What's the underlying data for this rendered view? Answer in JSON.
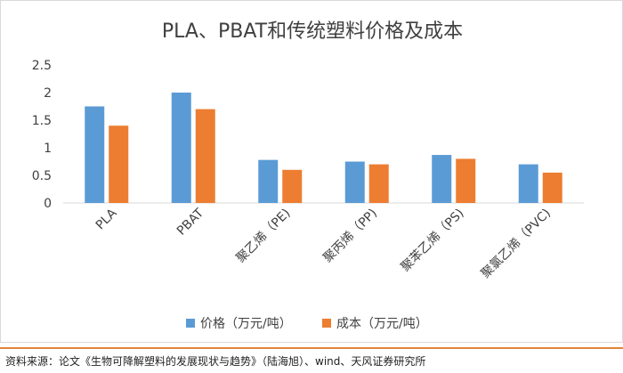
{
  "chart_data": {
    "type": "bar",
    "title": "PLA、PBAT和传统塑料价格及成本",
    "categories": [
      "PLA",
      "PBAT",
      "聚乙烯（PE)",
      "聚丙烯（PP)",
      "聚苯乙烯（PS)",
      "聚氯乙烯（PVC)"
    ],
    "series": [
      {
        "name": "价格（万元/吨）",
        "color": "#5b9bd5",
        "values": [
          1.75,
          2.0,
          0.78,
          0.75,
          0.87,
          0.7
        ]
      },
      {
        "name": "成本（万元/吨）",
        "color": "#ed7d31",
        "values": [
          1.4,
          1.7,
          0.6,
          0.7,
          0.8,
          0.55
        ]
      }
    ],
    "ylim": [
      0,
      2.5
    ],
    "yticks": [
      "0",
      "0.5",
      "1",
      "1.5",
      "2",
      "2.5"
    ],
    "grid": false,
    "legend": "bottom",
    "xlabel": "",
    "ylabel": ""
  },
  "source": "资料来源：论文《生物可降解塑料的发展现状与趋势》（陆海旭）、wind、天风证券研究所",
  "colors": {
    "divider": "#e0843a",
    "axis": "#d9d9d9",
    "text": "#404040"
  }
}
